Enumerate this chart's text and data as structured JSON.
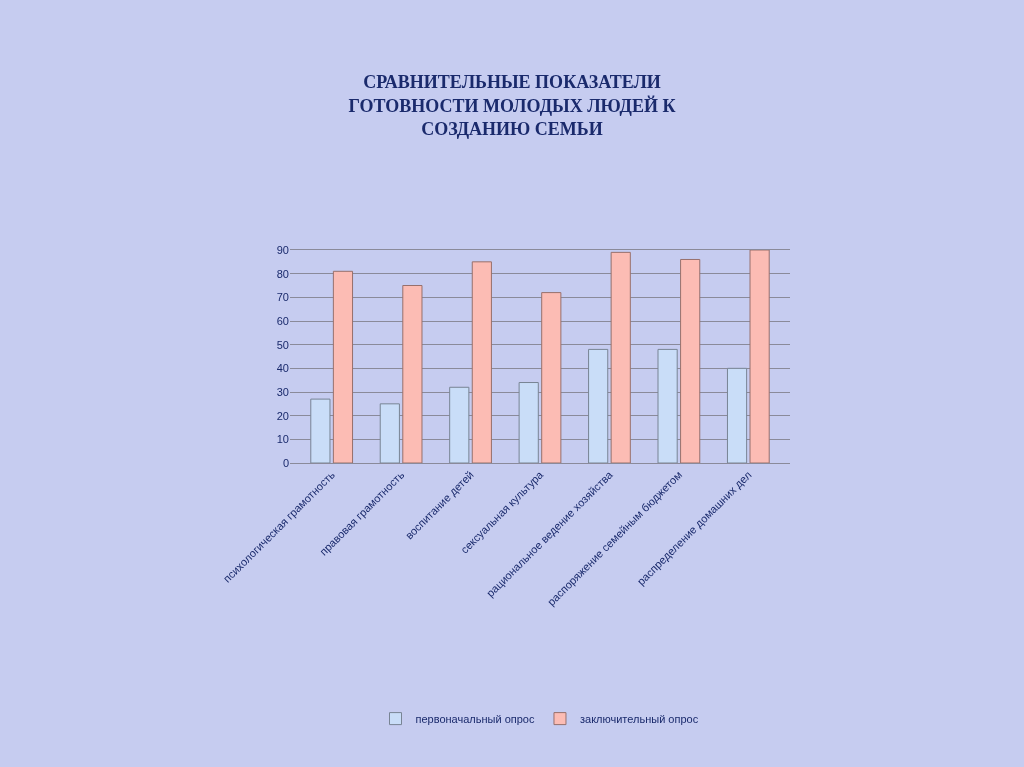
{
  "chart_data": {
    "type": "bar",
    "title": "СРАВНИТЕЛЬНЫЕ ПОКАЗАТЕЛИ\nГОТОВНОСТИ МОЛОДЫХ ЛЮДЕЙ К\nСОЗДАНИЮ СЕМЬИ",
    "categories": [
      "психологическая грамотность",
      "правовая грамотность",
      "воспитание детей",
      "сексуальная культура",
      "рациональное ведение хозяйства",
      "распоряжение семейным бюджетом",
      "распределение домашних дел"
    ],
    "series": [
      {
        "name": "первоначальный опрос",
        "color": "#c9ddf8",
        "values": [
          27,
          25,
          32,
          34,
          48,
          48,
          40
        ]
      },
      {
        "name": "заключительный опрос",
        "color": "#fcbcb4",
        "values": [
          81,
          75,
          85,
          72,
          89,
          86,
          90
        ]
      }
    ],
    "ylim": [
      0,
      90
    ],
    "yticks": [
      0,
      10,
      20,
      30,
      40,
      50,
      60,
      70,
      80,
      90
    ],
    "grid": "y",
    "legend": "bottom"
  }
}
